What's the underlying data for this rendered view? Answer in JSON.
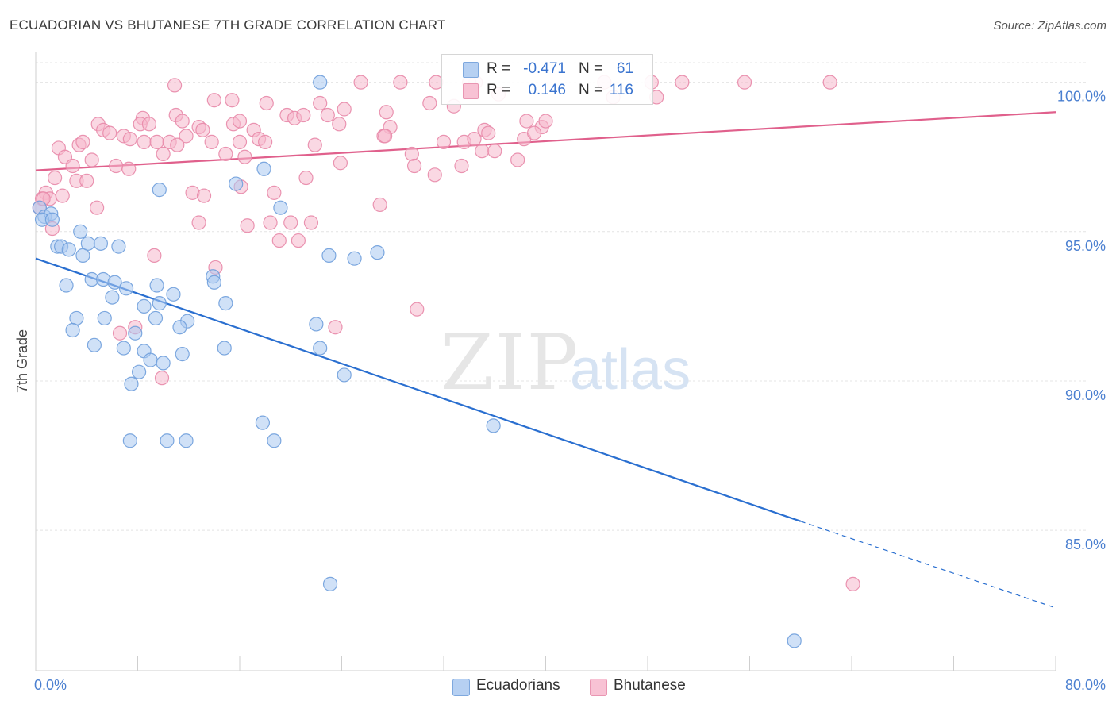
{
  "title": "ECUADORIAN VS BHUTANESE 7TH GRADE CORRELATION CHART",
  "source": "Source: ZipAtlas.com",
  "watermark": {
    "zip": "ZIP",
    "atlas": "atlas"
  },
  "legend": {
    "rows": [
      {
        "r_label": "R =",
        "r_value": "-0.471",
        "n_label": "N =",
        "n_value": "61"
      },
      {
        "r_label": "R =",
        "r_value": "0.146",
        "n_label": "N =",
        "n_value": "116"
      }
    ]
  },
  "bottom_legend": [
    "Ecuadorians",
    "Bhutanese"
  ],
  "colors": {
    "blue_fill": "#aac8f0",
    "blue_stroke": "#6f9fdc",
    "blue_line": "#2a6fd0",
    "pink_fill": "#f6b8cc",
    "pink_stroke": "#e888a8",
    "pink_line": "#e0608c",
    "tick_label": "#4a7fd0",
    "grid": "#e4e4e4"
  },
  "chart_data": {
    "type": "scatter",
    "title": "ECUADORIAN VS BHUTANESE 7TH GRADE CORRELATION CHART",
    "xlabel": "",
    "ylabel": "7th Grade",
    "xlim": [
      0,
      80
    ],
    "ylim": [
      80.3,
      101.0
    ],
    "x_tick_labels": [
      "0.0%",
      "80.0%"
    ],
    "y_ticks": [
      85,
      90,
      95,
      100
    ],
    "y_tick_labels": [
      "85.0%",
      "90.0%",
      "95.0%",
      "100.0%"
    ],
    "grid": true,
    "legend_position": "top-center",
    "series": [
      {
        "name": "Ecuadorians",
        "r": -0.471,
        "n": 61,
        "trend": {
          "x0": 0,
          "y0": 94.1,
          "x1": 60,
          "y1": 85.3,
          "dashed_to_x": 80,
          "dashed_to_y": 82.4
        },
        "points": [
          [
            0.3,
            95.8
          ],
          [
            0.7,
            95.5
          ],
          [
            1.2,
            95.6
          ],
          [
            0.5,
            95.4
          ],
          [
            1.3,
            95.4
          ],
          [
            1.7,
            94.5
          ],
          [
            2.0,
            94.5
          ],
          [
            2.6,
            94.4
          ],
          [
            3.5,
            95.0
          ],
          [
            3.7,
            94.2
          ],
          [
            4.1,
            94.6
          ],
          [
            5.1,
            94.6
          ],
          [
            6.5,
            94.5
          ],
          [
            2.4,
            93.2
          ],
          [
            4.4,
            93.4
          ],
          [
            5.3,
            93.4
          ],
          [
            6.2,
            93.3
          ],
          [
            7.1,
            93.1
          ],
          [
            6.0,
            92.8
          ],
          [
            8.5,
            92.5
          ],
          [
            9.5,
            93.2
          ],
          [
            10.8,
            92.9
          ],
          [
            9.7,
            92.6
          ],
          [
            11.9,
            92.0
          ],
          [
            13.9,
            93.5
          ],
          [
            14.0,
            93.3
          ],
          [
            14.9,
            92.6
          ],
          [
            3.2,
            92.1
          ],
          [
            5.4,
            92.1
          ],
          [
            9.4,
            92.1
          ],
          [
            11.3,
            91.8
          ],
          [
            2.9,
            91.7
          ],
          [
            7.8,
            91.6
          ],
          [
            4.6,
            91.2
          ],
          [
            6.9,
            91.1
          ],
          [
            8.5,
            91.0
          ],
          [
            11.5,
            90.9
          ],
          [
            9.0,
            90.7
          ],
          [
            10.0,
            90.6
          ],
          [
            8.1,
            90.3
          ],
          [
            7.5,
            89.9
          ],
          [
            14.8,
            91.1
          ],
          [
            9.7,
            96.4
          ],
          [
            15.7,
            96.6
          ],
          [
            17.9,
            97.1
          ],
          [
            19.2,
            95.8
          ],
          [
            23.0,
            94.2
          ],
          [
            25.0,
            94.1
          ],
          [
            26.8,
            94.3
          ],
          [
            22.0,
            91.9
          ],
          [
            22.3,
            91.1
          ],
          [
            24.2,
            90.2
          ],
          [
            17.8,
            88.6
          ],
          [
            7.4,
            88.0
          ],
          [
            10.3,
            88.0
          ],
          [
            11.8,
            88.0
          ],
          [
            18.7,
            88.0
          ],
          [
            35.9,
            88.5
          ],
          [
            23.1,
            83.2
          ],
          [
            59.5,
            81.3
          ],
          [
            22.3,
            100.0
          ]
        ]
      },
      {
        "name": "Bhutanese",
        "r": 0.146,
        "n": 116,
        "trend": {
          "x0": 0,
          "y0": 97.05,
          "x1": 80,
          "y1": 99.0
        },
        "points": [
          [
            10.9,
            99.9
          ],
          [
            25.5,
            100.0
          ],
          [
            28.6,
            100.0
          ],
          [
            31.4,
            100.0
          ],
          [
            34.5,
            100.0
          ],
          [
            44.6,
            100.0
          ],
          [
            48.3,
            100.0
          ],
          [
            50.7,
            100.0
          ],
          [
            55.6,
            100.0
          ],
          [
            62.3,
            100.0
          ],
          [
            34.0,
            100.0
          ],
          [
            14.0,
            99.4
          ],
          [
            15.4,
            99.4
          ],
          [
            18.1,
            99.3
          ],
          [
            22.3,
            99.3
          ],
          [
            24.2,
            99.1
          ],
          [
            30.9,
            99.3
          ],
          [
            32.8,
            99.2
          ],
          [
            36.3,
            99.6
          ],
          [
            45.3,
            99.5
          ],
          [
            48.7,
            99.5
          ],
          [
            8.4,
            98.8
          ],
          [
            11.0,
            98.9
          ],
          [
            11.5,
            98.7
          ],
          [
            19.7,
            98.9
          ],
          [
            20.3,
            98.8
          ],
          [
            22.9,
            98.9
          ],
          [
            27.5,
            99.0
          ],
          [
            15.5,
            98.6
          ],
          [
            16.0,
            98.7
          ],
          [
            4.9,
            98.6
          ],
          [
            5.3,
            98.4
          ],
          [
            5.8,
            98.3
          ],
          [
            8.2,
            98.6
          ],
          [
            8.9,
            98.6
          ],
          [
            11.8,
            98.2
          ],
          [
            12.8,
            98.5
          ],
          [
            13.1,
            98.4
          ],
          [
            17.1,
            98.4
          ],
          [
            23.8,
            98.6
          ],
          [
            27.8,
            98.5
          ],
          [
            35.2,
            98.4
          ],
          [
            39.7,
            98.5
          ],
          [
            6.9,
            98.2
          ],
          [
            7.4,
            98.1
          ],
          [
            17.5,
            98.1
          ],
          [
            18.0,
            98.0
          ],
          [
            13.8,
            98.0
          ],
          [
            8.5,
            98.0
          ],
          [
            9.5,
            98.0
          ],
          [
            10.5,
            98.0
          ],
          [
            11.1,
            97.9
          ],
          [
            21.9,
            97.9
          ],
          [
            27.3,
            98.2
          ],
          [
            32.0,
            98.0
          ],
          [
            33.6,
            98.0
          ],
          [
            34.4,
            98.1
          ],
          [
            35.5,
            98.3
          ],
          [
            38.3,
            98.1
          ],
          [
            39.1,
            98.3
          ],
          [
            1.8,
            97.8
          ],
          [
            3.4,
            97.9
          ],
          [
            3.7,
            98.0
          ],
          [
            14.9,
            97.6
          ],
          [
            10.0,
            97.6
          ],
          [
            16.4,
            97.5
          ],
          [
            23.9,
            97.3
          ],
          [
            29.5,
            97.6
          ],
          [
            2.3,
            97.5
          ],
          [
            4.4,
            97.4
          ],
          [
            33.4,
            97.2
          ],
          [
            35.0,
            97.7
          ],
          [
            37.8,
            97.4
          ],
          [
            2.9,
            97.2
          ],
          [
            6.3,
            97.2
          ],
          [
            7.3,
            97.1
          ],
          [
            29.7,
            97.2
          ],
          [
            31.3,
            96.9
          ],
          [
            21.2,
            96.8
          ],
          [
            1.5,
            96.8
          ],
          [
            3.2,
            96.7
          ],
          [
            4.0,
            96.7
          ],
          [
            16.1,
            96.5
          ],
          [
            18.7,
            96.3
          ],
          [
            12.3,
            96.3
          ],
          [
            13.2,
            96.2
          ],
          [
            0.8,
            96.3
          ],
          [
            0.5,
            96.1
          ],
          [
            1.1,
            96.1
          ],
          [
            2.1,
            96.2
          ],
          [
            27.0,
            95.9
          ],
          [
            0.3,
            95.8
          ],
          [
            4.8,
            95.8
          ],
          [
            12.8,
            95.3
          ],
          [
            16.6,
            95.2
          ],
          [
            18.4,
            95.3
          ],
          [
            20.0,
            95.3
          ],
          [
            21.6,
            95.3
          ],
          [
            1.3,
            95.1
          ],
          [
            19.1,
            94.7
          ],
          [
            20.6,
            94.7
          ],
          [
            9.3,
            94.2
          ],
          [
            14.1,
            93.8
          ],
          [
            29.9,
            92.4
          ],
          [
            23.5,
            91.8
          ],
          [
            6.6,
            91.6
          ],
          [
            7.8,
            91.8
          ],
          [
            9.9,
            90.1
          ],
          [
            64.1,
            83.2
          ],
          [
            0.6,
            96.1
          ],
          [
            27.4,
            98.2
          ],
          [
            38.5,
            98.7
          ],
          [
            40.0,
            98.7
          ],
          [
            36.0,
            97.7
          ],
          [
            21.0,
            98.9
          ],
          [
            16.0,
            98.0
          ]
        ]
      }
    ]
  }
}
